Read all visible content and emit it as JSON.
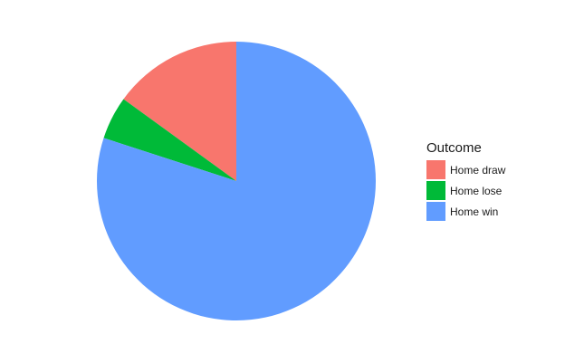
{
  "chart_data": {
    "type": "pie",
    "legend_title": "Outcome",
    "legend_position": "right",
    "slices": [
      {
        "label": "Home draw",
        "value": 0.15,
        "color": "#F8766D"
      },
      {
        "label": "Home lose",
        "value": 0.05,
        "color": "#00BA38"
      },
      {
        "label": "Home win",
        "value": 0.8,
        "color": "#619CFF"
      }
    ],
    "start": "top",
    "direction": "counterclockwise"
  }
}
